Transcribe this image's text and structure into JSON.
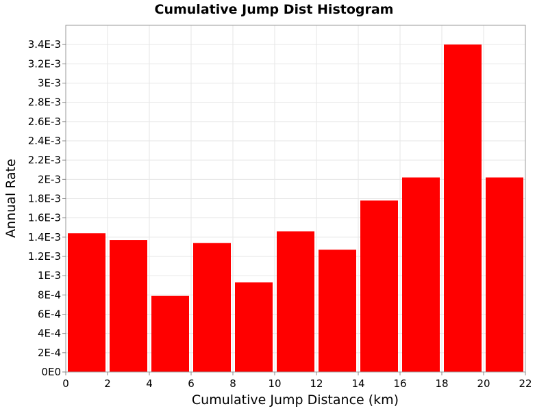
{
  "chart_data": {
    "type": "bar",
    "title": "Cumulative Jump Dist Histogram",
    "xlabel": "Cumulative Jump Distance (km)",
    "ylabel": "Annual Rate",
    "xlim": [
      0,
      22
    ],
    "ylim": [
      0,
      0.0036
    ],
    "grid": true,
    "bar_color": "#ff0000",
    "bin_width": 2,
    "bins": [
      {
        "x": 1,
        "value": 0.00144
      },
      {
        "x": 3,
        "value": 0.00137
      },
      {
        "x": 5,
        "value": 0.00079
      },
      {
        "x": 7,
        "value": 0.00134
      },
      {
        "x": 9,
        "value": 0.00093
      },
      {
        "x": 11,
        "value": 0.00146
      },
      {
        "x": 13,
        "value": 0.00127
      },
      {
        "x": 15,
        "value": 0.00178
      },
      {
        "x": 17,
        "value": 0.00202
      },
      {
        "x": 19,
        "value": 0.0034
      },
      {
        "x": 21,
        "value": 0.00202
      }
    ],
    "x_ticks": [
      0,
      2,
      4,
      6,
      8,
      10,
      12,
      14,
      16,
      18,
      20,
      22
    ],
    "y_ticks": [
      {
        "value": 0,
        "label": "0E0"
      },
      {
        "value": 0.0002,
        "label": "2E-4"
      },
      {
        "value": 0.0004,
        "label": "4E-4"
      },
      {
        "value": 0.0006,
        "label": "6E-4"
      },
      {
        "value": 0.0008,
        "label": "8E-4"
      },
      {
        "value": 0.001,
        "label": "1E-3"
      },
      {
        "value": 0.0012,
        "label": "1.2E-3"
      },
      {
        "value": 0.0014,
        "label": "1.4E-3"
      },
      {
        "value": 0.0016,
        "label": "1.6E-3"
      },
      {
        "value": 0.0018,
        "label": "1.8E-3"
      },
      {
        "value": 0.002,
        "label": "2E-3"
      },
      {
        "value": 0.0022,
        "label": "2.2E-3"
      },
      {
        "value": 0.0024,
        "label": "2.4E-3"
      },
      {
        "value": 0.0026,
        "label": "2.6E-3"
      },
      {
        "value": 0.0028,
        "label": "2.8E-3"
      },
      {
        "value": 0.003,
        "label": "3E-3"
      },
      {
        "value": 0.0032,
        "label": "3.2E-3"
      },
      {
        "value": 0.0034,
        "label": "3.4E-3"
      }
    ]
  }
}
